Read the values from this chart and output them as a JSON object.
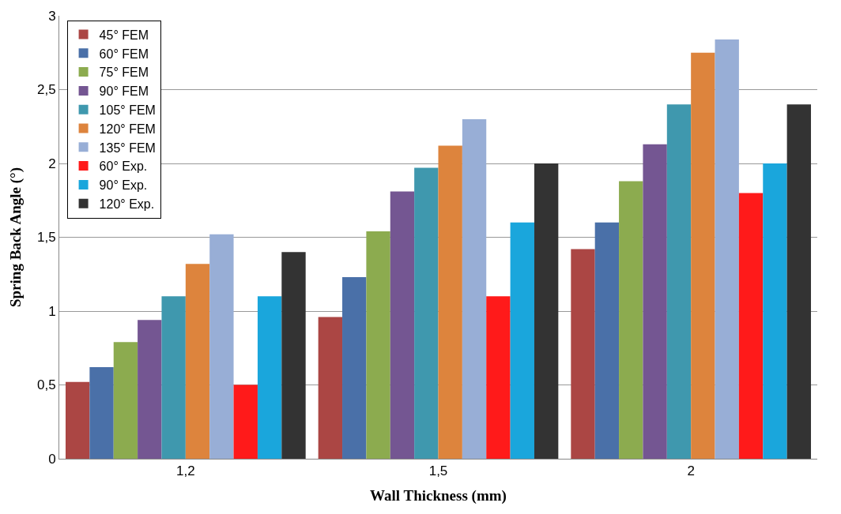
{
  "chart_data": {
    "type": "bar",
    "xlabel": "Wall Thickness (mm)",
    "ylabel": "Spring Back Angle (°)",
    "categories": [
      "1,2",
      "1,5",
      "2"
    ],
    "series": [
      {
        "name": "45° FEM",
        "color": "#ab4644",
        "values": [
          0.52,
          0.96,
          1.42
        ]
      },
      {
        "name": "60° FEM",
        "color": "#4a70a8",
        "values": [
          0.62,
          1.23,
          1.6
        ]
      },
      {
        "name": "75° FEM",
        "color": "#8cab4f",
        "values": [
          0.79,
          1.54,
          1.88
        ]
      },
      {
        "name": "90° FEM",
        "color": "#745692",
        "values": [
          0.94,
          1.81,
          2.13
        ]
      },
      {
        "name": "105° FEM",
        "color": "#3f98ae",
        "values": [
          1.1,
          1.97,
          2.4
        ]
      },
      {
        "name": "120° FEM",
        "color": "#dd843d",
        "values": [
          1.32,
          2.12,
          2.75
        ]
      },
      {
        "name": "135° FEM",
        "color": "#98aed6",
        "values": [
          1.52,
          2.3,
          2.84
        ]
      },
      {
        "name": "60° Exp.",
        "color": "#ff1a1a",
        "values": [
          0.5,
          1.1,
          1.8
        ]
      },
      {
        "name": "90° Exp.",
        "color": "#1aa6dc",
        "values": [
          1.1,
          1.6,
          2.0
        ]
      },
      {
        "name": "120° Exp.",
        "color": "#333333",
        "values": [
          1.4,
          2.0,
          2.4
        ]
      }
    ],
    "ylim": [
      0,
      3
    ],
    "yticks": [
      0,
      {
        "value": 0.5,
        "label": "0,5"
      },
      1,
      {
        "value": 1.5,
        "label": "1,5"
      },
      2,
      {
        "value": 2.5,
        "label": "2,5"
      },
      3
    ],
    "grid": "y",
    "legend": "top left"
  }
}
